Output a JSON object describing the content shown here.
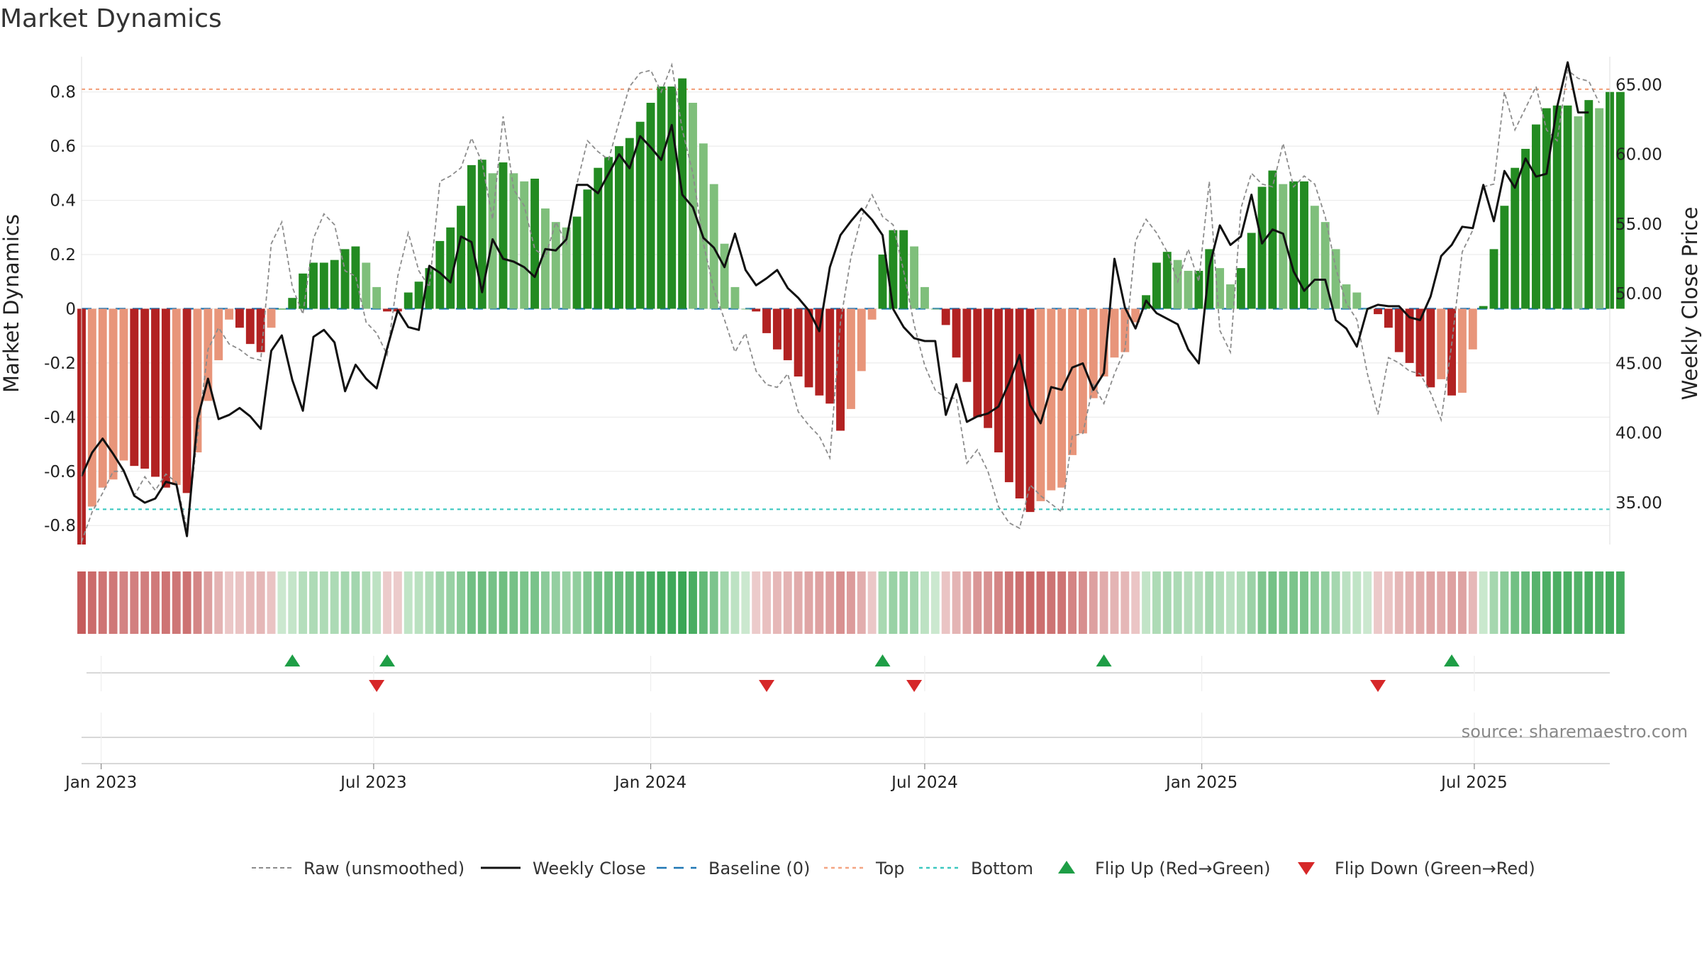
{
  "chart_data": {
    "type": "bar",
    "title": "Market Dynamics",
    "ylabel_left": "Market Dynamics",
    "ylabel_right": "Weekly Close Price",
    "ylim_left": [
      -0.87,
      0.93
    ],
    "ylim_right": [
      32.0,
      67.0
    ],
    "left_ticks": [
      "-0.8",
      "-0.6",
      "-0.4",
      "-0.2",
      "0",
      "0.2",
      "0.4",
      "0.6",
      "0.8"
    ],
    "right_ticks": [
      "35.00",
      "40.00",
      "45.00",
      "50.00",
      "55.00",
      "60.00",
      "65.00"
    ],
    "x_start": "2022-12-19",
    "x_end": "2025-09-29",
    "x_ticks": [
      {
        "date": "2023-01-01",
        "label": "Jan 2023"
      },
      {
        "date": "2023-07-01",
        "label": "Jul 2023"
      },
      {
        "date": "2024-01-01",
        "label": "Jan 2024"
      },
      {
        "date": "2024-07-01",
        "label": "Jul 2024"
      },
      {
        "date": "2025-01-01",
        "label": "Jan 2025"
      },
      {
        "date": "2025-07-01",
        "label": "Jul 2025"
      }
    ],
    "top_level": 0.81,
    "bottom_level": -0.74,
    "baseline": 0,
    "first_week": "2022-12-19",
    "values": [
      -0.87,
      -0.73,
      -0.66,
      -0.63,
      -0.56,
      -0.58,
      -0.59,
      -0.62,
      -0.66,
      -0.65,
      -0.68,
      -0.53,
      -0.34,
      -0.19,
      -0.04,
      -0.07,
      -0.13,
      -0.16,
      -0.07,
      0.0,
      0.04,
      0.13,
      0.17,
      0.17,
      0.18,
      0.22,
      0.23,
      0.17,
      0.08,
      -0.01,
      -0.01,
      0.06,
      0.1,
      0.15,
      0.25,
      0.3,
      0.38,
      0.53,
      0.55,
      0.5,
      0.54,
      0.5,
      0.47,
      0.48,
      0.37,
      0.32,
      0.3,
      0.34,
      0.44,
      0.52,
      0.56,
      0.6,
      0.63,
      0.69,
      0.76,
      0.82,
      0.82,
      0.85,
      0.76,
      0.61,
      0.46,
      0.24,
      0.08,
      0.0,
      -0.01,
      -0.09,
      -0.15,
      -0.19,
      -0.25,
      -0.29,
      -0.32,
      -0.35,
      -0.45,
      -0.37,
      -0.23,
      -0.04,
      0.2,
      0.29,
      0.29,
      0.23,
      0.08,
      0.0,
      -0.06,
      -0.18,
      -0.27,
      -0.4,
      -0.44,
      -0.53,
      -0.64,
      -0.7,
      -0.75,
      -0.71,
      -0.67,
      -0.66,
      -0.54,
      -0.46,
      -0.33,
      -0.25,
      -0.18,
      -0.16,
      -0.05,
      0.05,
      0.17,
      0.21,
      0.18,
      0.14,
      0.14,
      0.22,
      0.15,
      0.09,
      0.15,
      0.28,
      0.45,
      0.51,
      0.46,
      0.47,
      0.47,
      0.38,
      0.32,
      0.22,
      0.09,
      0.06,
      0.0,
      -0.02,
      -0.07,
      -0.16,
      -0.2,
      -0.25,
      -0.29,
      -0.26,
      -0.32,
      -0.31,
      -0.15,
      0.01,
      0.22,
      0.38,
      0.52,
      0.59,
      0.68,
      0.74,
      0.75,
      0.75,
      0.71,
      0.77,
      0.74,
      0.8,
      0.8
    ],
    "raw": [
      -0.86,
      -0.75,
      -0.68,
      -0.6,
      -0.6,
      -0.69,
      -0.62,
      -0.67,
      -0.61,
      -0.64,
      -0.81,
      -0.47,
      -0.15,
      -0.07,
      -0.13,
      -0.15,
      -0.18,
      -0.19,
      0.24,
      0.32,
      0.08,
      -0.02,
      0.26,
      0.35,
      0.31,
      0.14,
      0.12,
      -0.05,
      -0.09,
      -0.17,
      0.12,
      0.28,
      0.14,
      0.08,
      0.47,
      0.49,
      0.52,
      0.63,
      0.54,
      0.33,
      0.71,
      0.44,
      0.38,
      0.22,
      0.19,
      0.32,
      0.24,
      0.46,
      0.62,
      0.58,
      0.55,
      0.69,
      0.82,
      0.87,
      0.88,
      0.8,
      0.9,
      0.66,
      0.5,
      0.24,
      0.07,
      -0.04,
      -0.16,
      -0.09,
      -0.23,
      -0.28,
      -0.29,
      -0.24,
      -0.38,
      -0.43,
      -0.47,
      -0.55,
      -0.05,
      0.19,
      0.34,
      0.42,
      0.34,
      0.31,
      0.14,
      -0.06,
      -0.21,
      -0.3,
      -0.33,
      -0.33,
      -0.57,
      -0.52,
      -0.6,
      -0.73,
      -0.79,
      -0.81,
      -0.65,
      -0.69,
      -0.72,
      -0.75,
      -0.47,
      -0.46,
      -0.28,
      -0.35,
      -0.24,
      -0.15,
      0.25,
      0.33,
      0.28,
      0.21,
      0.1,
      0.22,
      0.1,
      0.47,
      -0.08,
      -0.16,
      0.37,
      0.5,
      0.46,
      0.45,
      0.61,
      0.45,
      0.49,
      0.46,
      0.34,
      0.15,
      0.02,
      -0.04,
      -0.24,
      -0.39,
      -0.18,
      -0.2,
      -0.23,
      -0.24,
      -0.31,
      -0.41,
      -0.13,
      0.21,
      0.29,
      0.45,
      0.46,
      0.8,
      0.66,
      0.74,
      0.82,
      0.66,
      0.62,
      0.88,
      0.85,
      0.84,
      0.76
    ],
    "price": [
      36.9,
      38.6,
      39.6,
      38.5,
      37.3,
      35.5,
      35.0,
      35.3,
      36.5,
      36.3,
      32.6,
      41.0,
      43.9,
      41.0,
      41.3,
      41.8,
      41.2,
      40.3,
      45.9,
      47.0,
      43.8,
      41.6,
      46.9,
      47.4,
      46.5,
      43.0,
      44.9,
      43.9,
      43.2,
      46.1,
      48.8,
      47.6,
      47.4,
      52.0,
      51.5,
      50.8,
      54.1,
      53.7,
      50.1,
      53.9,
      52.5,
      52.3,
      51.9,
      51.2,
      53.2,
      53.1,
      53.9,
      57.8,
      57.8,
      57.2,
      58.6,
      60.0,
      59.0,
      61.3,
      60.5,
      59.6,
      62.1,
      57.1,
      56.2,
      54.0,
      53.3,
      51.9,
      54.3,
      51.7,
      50.6,
      51.1,
      51.7,
      50.4,
      49.7,
      48.8,
      47.3,
      51.9,
      54.2,
      55.2,
      56.1,
      55.3,
      54.2,
      48.9,
      47.6,
      46.8,
      46.6,
      46.6,
      41.3,
      43.5,
      40.8,
      41.2,
      41.4,
      41.9,
      43.6,
      45.6,
      42.0,
      40.7,
      43.3,
      43.1,
      44.7,
      45.0,
      43.1,
      44.3,
      52.5,
      49.0,
      47.5,
      49.5,
      48.6,
      48.2,
      47.8,
      46.0,
      45.0,
      51.9,
      54.9,
      53.5,
      54.1,
      57.1,
      53.6,
      54.6,
      54.3,
      51.6,
      50.2,
      51.0,
      51.0,
      48.1,
      47.5,
      46.2,
      48.9,
      49.2,
      49.1,
      49.1,
      48.3,
      48.1,
      49.8,
      52.7,
      53.5,
      54.8,
      54.7,
      57.8,
      55.2,
      58.8,
      57.6,
      59.7,
      58.4,
      58.6,
      63.4,
      66.6,
      63.0,
      63.0
    ],
    "flip_up": [
      "2023-05-08",
      "2023-07-10",
      "2024-06-03",
      "2024-10-28",
      "2025-06-16"
    ],
    "flip_down": [
      "2023-07-03",
      "2024-03-18",
      "2024-06-24",
      "2025-04-28"
    ],
    "legend": [
      {
        "label": "Raw (unsmoothed)",
        "style": "dashed-gray"
      },
      {
        "label": "Weekly Close",
        "style": "solid-black"
      },
      {
        "label": "Baseline (0)",
        "style": "dashed-blue"
      },
      {
        "label": "Top",
        "style": "dashed-orange"
      },
      {
        "label": "Bottom",
        "style": "dashed-teal"
      },
      {
        "label": "Flip Up (Red→Green)",
        "style": "triangle-up-green"
      },
      {
        "label": "Flip Down (Green→Red)",
        "style": "triangle-down-red"
      }
    ],
    "source": "source: sharemaestro.com",
    "legend_placement": "bottom",
    "grid": true
  },
  "colors": {
    "strong_green": "#238b22",
    "light_green": "#7fbf7b",
    "strong_red": "#b22222",
    "light_red": "#e8957a",
    "price_line": "#111111",
    "raw_line": "#8c8c8c",
    "baseline": "#1f77b4",
    "top_line": "#f4a582",
    "bottom_line": "#3cc8c0",
    "flip_up": "#1e9e46",
    "flip_down": "#d62728"
  }
}
